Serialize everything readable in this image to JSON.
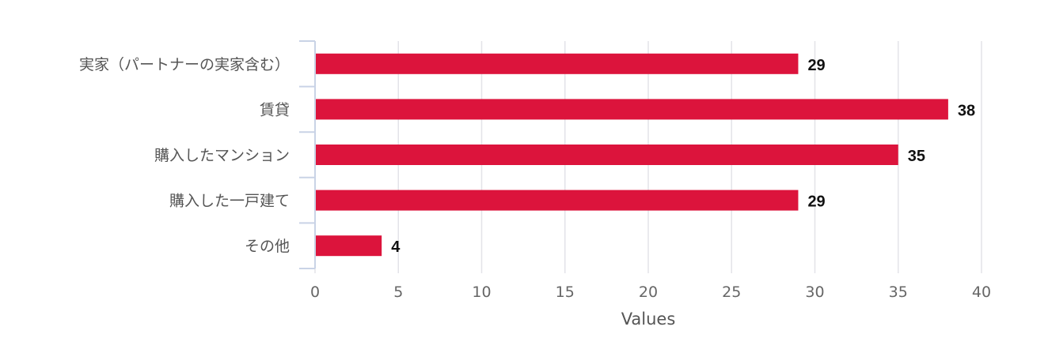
{
  "chart_data": {
    "type": "bar",
    "orientation": "horizontal",
    "categories": [
      "実家（パートナーの実家含む）",
      "賃貸",
      "購入したマンション",
      "購入した一戸建て",
      "その他"
    ],
    "values": [
      29,
      38,
      35,
      29,
      4
    ],
    "xlabel": "Values",
    "ylabel": "",
    "xlim": [
      0,
      40
    ],
    "x_ticks": [
      0,
      5,
      10,
      15,
      20,
      25,
      30,
      35,
      40
    ],
    "grid": "vertical",
    "legend": "none",
    "colors": {
      "bar": "#DC143C",
      "grid": "#E3E3E8",
      "axis": "#C9D3E6"
    }
  }
}
